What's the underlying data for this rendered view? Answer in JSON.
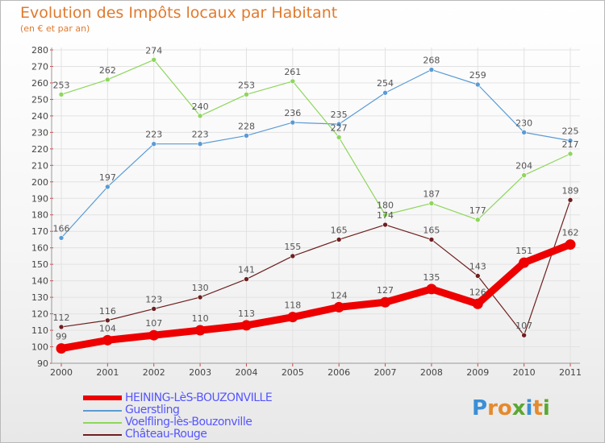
{
  "title": "Evolution des Impôts locaux par Habitant",
  "subtitle": "(en € et par an)",
  "logo": {
    "text": "Proxiti",
    "letters": [
      "P",
      "r",
      "o",
      "x",
      "i",
      "t",
      "i"
    ],
    "colors": [
      "#3a8fd6",
      "#e58a2e",
      "#e58a2e",
      "#5aa832",
      "#3a8fd6",
      "#e58a2e",
      "#5aa832"
    ]
  },
  "chart_data": {
    "type": "line",
    "x": [
      "2000",
      "2001",
      "2002",
      "2003",
      "2004",
      "2005",
      "2006",
      "2007",
      "2008",
      "2009",
      "2010",
      "2011"
    ],
    "ylim": [
      90,
      280
    ],
    "yticks": [
      90,
      100,
      110,
      120,
      130,
      140,
      150,
      160,
      170,
      180,
      190,
      200,
      210,
      220,
      230,
      240,
      250,
      260,
      270,
      280
    ],
    "grid": true,
    "legend_position": "bottom-left",
    "series": [
      {
        "name": "HEINING-LèS-BOUZONVILLE",
        "color": "#ee0000",
        "bold": true,
        "values": [
          99,
          104,
          107,
          110,
          113,
          118,
          124,
          127,
          135,
          126,
          151,
          162
        ]
      },
      {
        "name": "Guerstling",
        "color": "#5b9bd5",
        "bold": false,
        "values": [
          166,
          197,
          223,
          223,
          228,
          236,
          235,
          254,
          268,
          259,
          230,
          225
        ]
      },
      {
        "name": "Voelfling-lès-Bouzonville",
        "color": "#8ed65c",
        "bold": false,
        "values": [
          253,
          262,
          274,
          240,
          253,
          261,
          227,
          180,
          187,
          177,
          204,
          217
        ]
      },
      {
        "name": "Château-Rouge",
        "color": "#6e1f1f",
        "bold": false,
        "values": [
          112,
          116,
          123,
          130,
          141,
          155,
          165,
          174,
          165,
          143,
          107,
          189
        ]
      }
    ]
  }
}
